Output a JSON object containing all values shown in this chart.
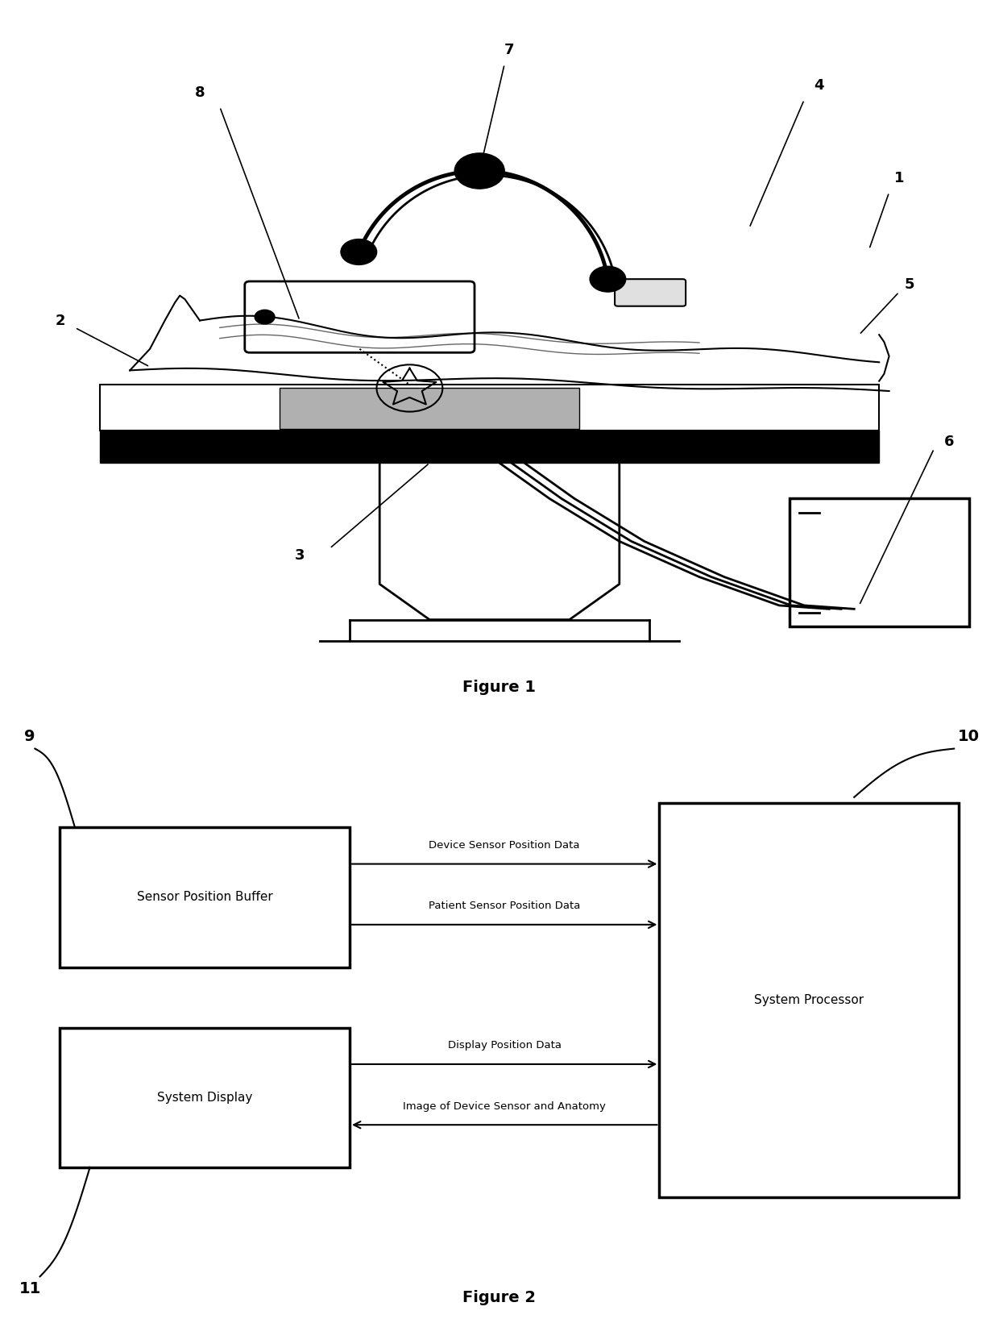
{
  "fig1_title": "Figure 1",
  "fig2_title": "Figure 2",
  "background_color": "#ffffff",
  "line_color": "#000000",
  "fig2_spb_label": "Sensor Position Buffer",
  "fig2_sd_label": "System Display",
  "fig2_sp_label": "System Processor",
  "arrow1_label": "Device Sensor Position Data",
  "arrow2_label": "Patient Sensor Position Data",
  "arrow3_label": "Display Position Data",
  "arrow4_label": "Image of Device Sensor and Anatomy",
  "ref_labels_fig1": [
    "7",
    "8",
    "4",
    "1",
    "5",
    "2",
    "3",
    "6"
  ],
  "ref_labels_fig2": [
    "9",
    "10",
    "11"
  ]
}
